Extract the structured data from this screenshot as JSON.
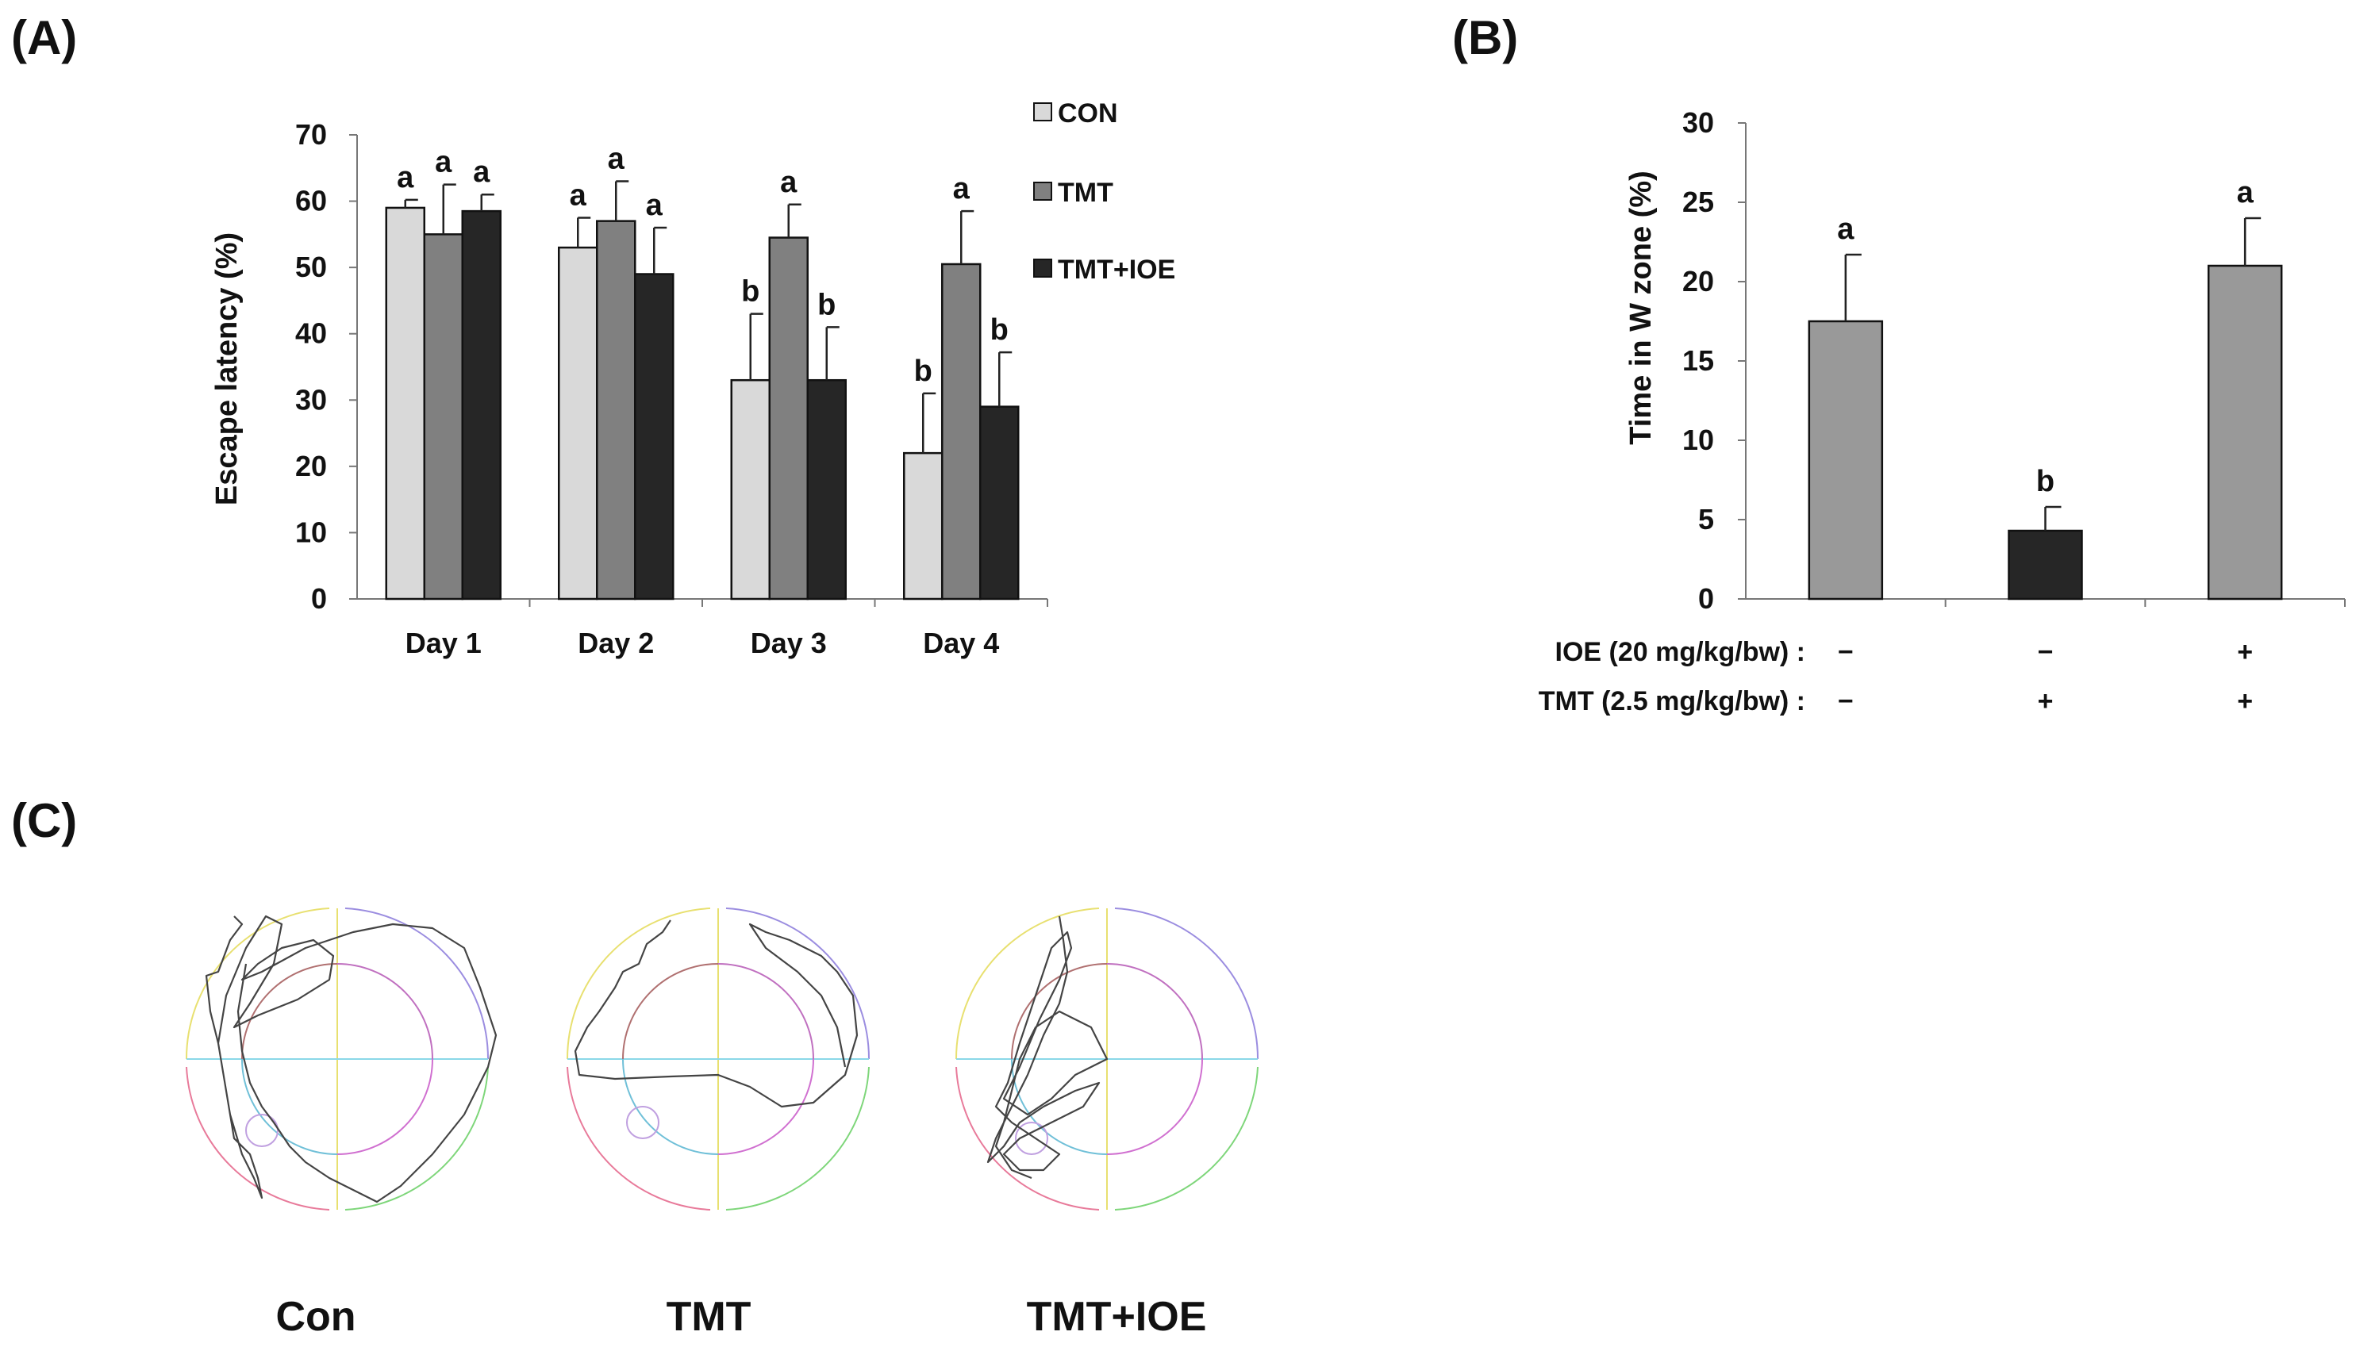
{
  "panels": {
    "a": "(A)",
    "b": "(B)",
    "c": "(C)"
  },
  "chart_data": [
    {
      "type": "bar",
      "panel": "(A)",
      "categories": [
        "Day 1",
        "Day 2",
        "Day 3",
        "Day 4"
      ],
      "ylabel": "Escape latency (%)",
      "xlabel": "",
      "ylim": [
        0,
        70
      ],
      "yticks": [
        0,
        10,
        20,
        30,
        40,
        50,
        60,
        70
      ],
      "legend_position": "top-right",
      "series": [
        {
          "name": "CON",
          "color": "#d9d9d9",
          "values": [
            59,
            53,
            33,
            22
          ],
          "errors": [
            1.2,
            4.5,
            10,
            9
          ],
          "letters": [
            "a",
            "a",
            "b",
            "b"
          ]
        },
        {
          "name": "TMT",
          "color": "#808080",
          "values": [
            55,
            57,
            54.5,
            50.5
          ],
          "errors": [
            7.5,
            6,
            5,
            8
          ],
          "letters": [
            "a",
            "a",
            "a",
            "a"
          ]
        },
        {
          "name": "TMT+IOE",
          "color": "#262626",
          "values": [
            58.5,
            49,
            33,
            29
          ],
          "errors": [
            2.5,
            7,
            8,
            8.2
          ],
          "letters": [
            "a",
            "a",
            "b",
            "b"
          ]
        }
      ]
    },
    {
      "type": "bar",
      "panel": "(B)",
      "categories": [
        "",
        "",
        ""
      ],
      "ylabel": "Time in W zone (%)",
      "xlabel": "",
      "ylim": [
        0,
        30
      ],
      "yticks": [
        0,
        5,
        10,
        15,
        20,
        25,
        30
      ],
      "values": [
        17.5,
        4.3,
        21
      ],
      "errors": [
        4.2,
        1.5,
        3
      ],
      "letters": [
        "a",
        "b",
        "a"
      ],
      "colors": [
        "#999999",
        "#262626",
        "#999999"
      ],
      "conditions": [
        {
          "label": "IOE (20 mg/kg/bw) :",
          "signs": [
            "−",
            "−",
            "+"
          ]
        },
        {
          "label": "TMT (2.5 mg/kg/bw) :",
          "signs": [
            "−",
            "+",
            "+"
          ]
        }
      ]
    }
  ],
  "panel_c": {
    "groups": [
      "Con",
      "TMT",
      "TMT+IOE"
    ]
  }
}
